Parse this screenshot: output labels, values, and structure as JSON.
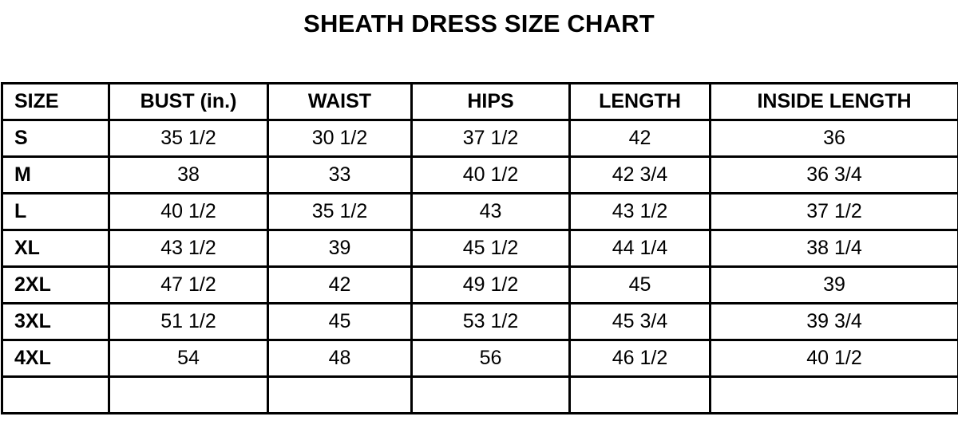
{
  "title": "SHEATH DRESS SIZE CHART",
  "headers": [
    "SIZE",
    "BUST (in.)",
    "WAIST",
    "HIPS",
    "LENGTH",
    "INSIDE LENGTH"
  ],
  "rows": [
    [
      "S",
      "35 1/2",
      "30 1/2",
      "37 1/2",
      "42",
      "36"
    ],
    [
      "M",
      "38",
      "33",
      "40 1/2",
      "42 3/4",
      "36 3/4"
    ],
    [
      "L",
      "40 1/2",
      "35 1/2",
      "43",
      "43 1/2",
      "37 1/2"
    ],
    [
      "XL",
      "43 1/2",
      "39",
      "45 1/2",
      "44 1/4",
      "38 1/4"
    ],
    [
      "2XL",
      "47 1/2",
      "42",
      "49 1/2",
      "45",
      "39"
    ],
    [
      "3XL",
      "51 1/2",
      "45",
      "53 1/2",
      "45 3/4",
      "39 3/4"
    ],
    [
      "4XL",
      "54",
      "48",
      "56",
      "46 1/2",
      "40 1/2"
    ],
    [
      "",
      "",
      "",
      "",
      "",
      ""
    ]
  ]
}
